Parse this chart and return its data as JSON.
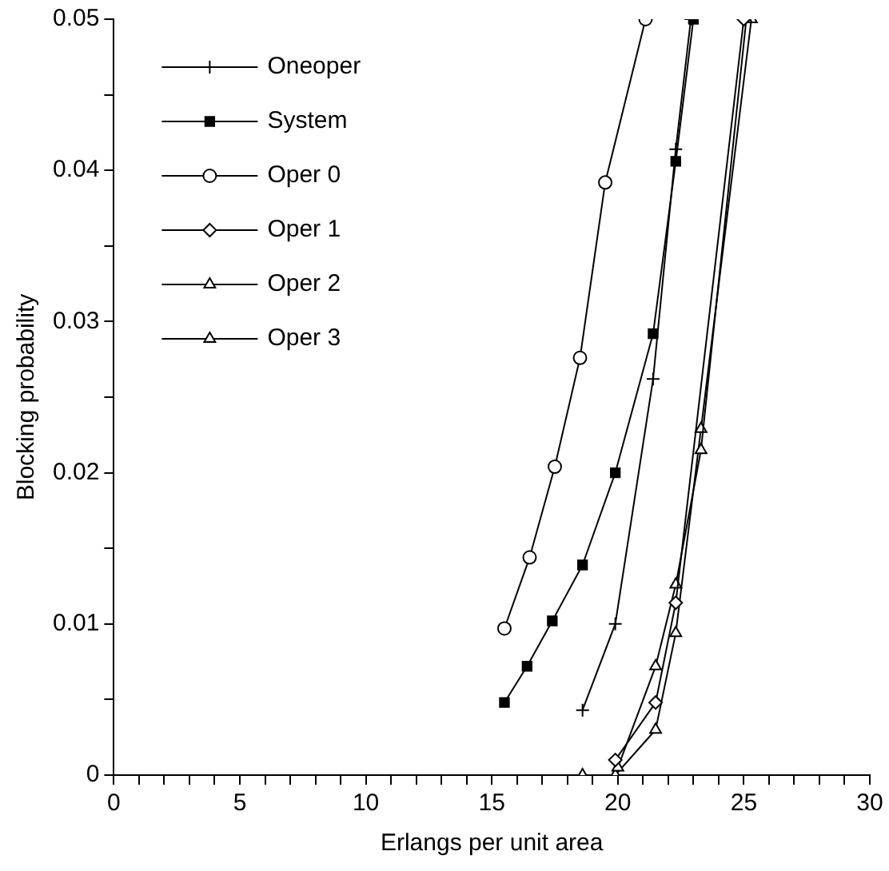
{
  "chart_data": {
    "type": "line",
    "xlabel": "Erlangs per unit area",
    "ylabel": "Blocking probability",
    "xlim": [
      0,
      30
    ],
    "ylim": [
      0,
      0.05
    ],
    "xticks": [
      0,
      {
        "value": 1,
        "label": null
      },
      {
        "value": 2,
        "label": null
      },
      {
        "value": 3,
        "label": null
      },
      {
        "value": 4,
        "label": null
      },
      5,
      {
        "value": 6,
        "label": null
      },
      {
        "value": 7,
        "label": null
      },
      {
        "value": 8,
        "label": null
      },
      {
        "value": 9,
        "label": null
      },
      10,
      {
        "value": 11,
        "label": null
      },
      {
        "value": 12,
        "label": null
      },
      {
        "value": 13,
        "label": null
      },
      {
        "value": 14,
        "label": null
      },
      15,
      {
        "value": 16,
        "label": null
      },
      {
        "value": 17,
        "label": null
      },
      {
        "value": 18,
        "label": null
      },
      {
        "value": 19,
        "label": null
      },
      20,
      {
        "value": 21,
        "label": null
      },
      {
        "value": 22,
        "label": null
      },
      {
        "value": 23,
        "label": null
      },
      {
        "value": 24,
        "label": null
      },
      25,
      {
        "value": 26,
        "label": null
      },
      {
        "value": 27,
        "label": null
      },
      {
        "value": 28,
        "label": null
      },
      {
        "value": 29,
        "label": null
      },
      30
    ],
    "yticks": [
      0,
      {
        "value": 0.005,
        "label": null
      },
      0.01,
      {
        "value": 0.015,
        "label": null
      },
      0.02,
      {
        "value": 0.025,
        "label": null
      },
      0.03,
      {
        "value": 0.035,
        "label": null
      },
      0.04,
      {
        "value": 0.045,
        "label": null
      },
      0.05
    ],
    "grid": false,
    "legend": "top left",
    "line_style": "solid",
    "series": [
      {
        "name": "Oneoper",
        "color": "#000000",
        "marker": "cross",
        "x": [
          18.6,
          19.9,
          21.4,
          22.3,
          22.9
        ],
        "values": [
          0.0043,
          0.01,
          0.0262,
          0.0414,
          0.05
        ]
      },
      {
        "name": "System",
        "color": "#000000",
        "marker": "square",
        "x": [
          15.5,
          16.4,
          17.4,
          18.6,
          19.9,
          21.4,
          22.3,
          23.0
        ],
        "values": [
          0.0048,
          0.0072,
          0.0102,
          0.0139,
          0.02,
          0.0292,
          0.0406,
          0.05
        ]
      },
      {
        "name": "Oper 0",
        "color": "#000000",
        "marker": "circle",
        "x": [
          15.5,
          16.5,
          17.5,
          18.5,
          19.5,
          21.1
        ],
        "values": [
          0.0097,
          0.0144,
          0.0204,
          0.0276,
          0.0392,
          0.05
        ]
      },
      {
        "name": "Oper 1",
        "color": "#000000",
        "marker": "diamond",
        "x": [
          19.9,
          21.5,
          22.3,
          25.0
        ],
        "values": [
          0.001,
          0.0048,
          0.0114,
          0.05
        ]
      },
      {
        "name": "Oper 2",
        "color": "#000000",
        "marker": "triangle",
        "x": [
          20.0,
          21.5,
          22.3,
          23.3,
          25.1
        ],
        "values": [
          0.0005,
          0.0072,
          0.0126,
          0.0215,
          0.05
        ]
      },
      {
        "name": "Oper 3",
        "color": "#000000",
        "marker": "triangle",
        "x": [
          18.6,
          19.9,
          21.5,
          22.3,
          23.3,
          25.3
        ],
        "values": [
          0,
          0,
          0.003,
          0.0094,
          0.0229,
          0.05
        ]
      }
    ]
  }
}
